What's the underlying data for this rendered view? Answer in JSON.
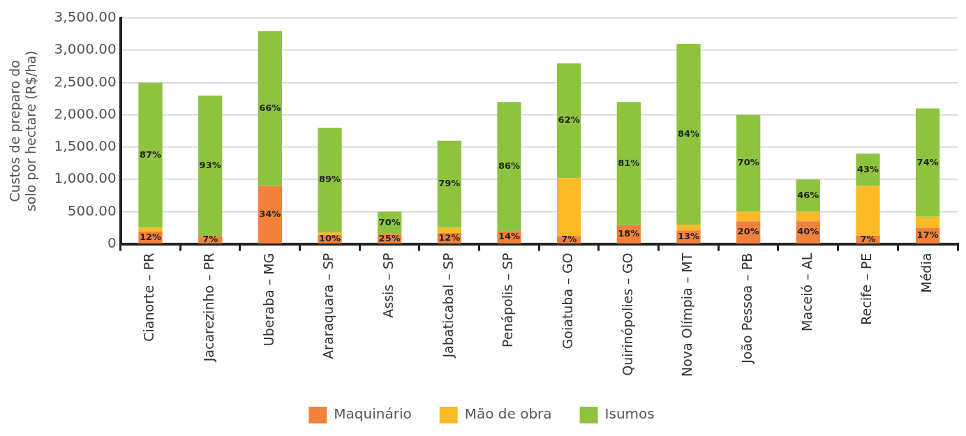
{
  "chart_data": {
    "type": "bar",
    "stacked": true,
    "ylabel": "Custos de preparo do\nsolo por hectare (R$/ha)",
    "categories": [
      "Cianorte – PR",
      "Jacarezinho – PR",
      "Uberaba – MG",
      "Araraquara – SP",
      "Assis – SP",
      "Jabaticabal – SP",
      "Penápolis – SP",
      "Goiatuba – GO",
      "Quirinópolies – GO",
      "Nova Olímpia – MT",
      "João Pessoa – PB",
      "Maceió – AL",
      "Recife – PE",
      "Média"
    ],
    "series": [
      {
        "name": "Maquinário",
        "color": "#f3813c",
        "values": [
          190,
          120,
          900,
          140,
          150,
          170,
          200,
          120,
          290,
          210,
          350,
          350,
          130,
          250
        ]
      },
      {
        "name": "Mão de obra",
        "color": "#fbbb27",
        "values": [
          60,
          0,
          0,
          40,
          0,
          80,
          0,
          900,
          0,
          90,
          150,
          150,
          770,
          170
        ]
      },
      {
        "name": "Isumos",
        "color": "#8dc33f",
        "values": [
          2250,
          2180,
          2400,
          1620,
          350,
          1350,
          2000,
          1780,
          1910,
          2800,
          1500,
          500,
          500,
          1680
        ]
      }
    ],
    "annotations": [
      "12%",
      "87%",
      "7%",
      "93%",
      "34%",
      "66%",
      "10%",
      "89%",
      "25%",
      "70%",
      "12%",
      "79%",
      "14%",
      "86%",
      "7%",
      "62%",
      "18%",
      "81%",
      "13%",
      "84%",
      "20%",
      "70%",
      "40%",
      "46%",
      "7%",
      "43%",
      "17%",
      "74%"
    ],
    "ylim": [
      0,
      3500
    ],
    "yticks": [
      {
        "value": 0,
        "label": "0"
      },
      {
        "value": 500,
        "label": "500.00"
      },
      {
        "value": 1000,
        "label": "1,000.00"
      },
      {
        "value": 1500,
        "label": "1,500.00"
      },
      {
        "value": 2000,
        "label": "2,000.00"
      },
      {
        "value": 2500,
        "label": "2,500.00"
      },
      {
        "value": 3000,
        "label": "3,000.00"
      },
      {
        "value": 3500,
        "label": "3,500.00"
      }
    ],
    "grid": "y",
    "legend": "bottom"
  }
}
